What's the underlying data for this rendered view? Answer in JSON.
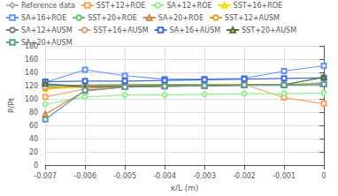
{
  "chart_data": {
    "type": "line",
    "xlabel": "x/L (m)",
    "ylabel": "P/Pt",
    "x": [
      -0.007,
      -0.006,
      -0.005,
      -0.004,
      -0.003,
      -0.002,
      -0.001,
      0.0
    ],
    "series": [
      {
        "name": "Reference data",
        "color": "#b0b0b0",
        "marker": "diamond",
        "values": [
          120,
          121,
          121,
          121,
          121,
          121,
          121,
          125
        ]
      },
      {
        "name": "SST+12+ROE",
        "color": "#f4a460",
        "marker": "square",
        "values": [
          103,
          115,
          120,
          120,
          121,
          122,
          102,
          93
        ]
      },
      {
        "name": "SA+12+ROE",
        "color": "#90ee90",
        "marker": "circle",
        "values": [
          92,
          103,
          106,
          106,
          107,
          108,
          108,
          109
        ]
      },
      {
        "name": "SST+16+ROE",
        "color": "#ffd700",
        "marker": "triangle",
        "values": [
          115,
          118,
          120,
          121,
          122,
          122,
          122,
          123
        ]
      },
      {
        "name": "SA+16+ROE",
        "color": "#6495ed",
        "marker": "square",
        "values": [
          125,
          144,
          135,
          130,
          130,
          131,
          142,
          150
        ]
      },
      {
        "name": "SST+20+ROE",
        "color": "#6abf6a",
        "marker": "circle",
        "values": [
          120,
          121,
          122,
          122,
          122,
          122,
          122,
          132
        ]
      },
      {
        "name": "SA+20+ROE",
        "color": "#cd853f",
        "marker": "triangle",
        "values": [
          77,
          112,
          118,
          119,
          120,
          121,
          121,
          122
        ]
      },
      {
        "name": "SST+12+AUSM",
        "color": "#daa520",
        "marker": "circle",
        "values": [
          116,
          120,
          121,
          121,
          121,
          122,
          122,
          122
        ]
      },
      {
        "name": "SA+12+AUSM",
        "color": "#808080",
        "marker": "circle",
        "values": [
          122,
          120,
          120,
          120,
          120,
          121,
          121,
          123
        ]
      },
      {
        "name": "SST+16+AUSM",
        "color": "#c8a882",
        "marker": "circle",
        "values": [
          118,
          119,
          120,
          120,
          120,
          121,
          121,
          122
        ]
      },
      {
        "name": "SA+16+AUSM",
        "color": "#4169e1",
        "marker": "square",
        "values": [
          126,
          127,
          127,
          128,
          129,
          130,
          131,
          132
        ]
      },
      {
        "name": "SST+20+AUSM",
        "color": "#556b2f",
        "marker": "triangle",
        "values": [
          123,
          118,
          119,
          120,
          120,
          121,
          121,
          133
        ]
      },
      {
        "name": "SA+20+AUSM",
        "color": "#5f9ea0",
        "marker": "square",
        "values": [
          69,
          113,
          118,
          119,
          120,
          121,
          121,
          122
        ]
      }
    ],
    "xlim": [
      -0.007,
      0.0
    ],
    "xticks": [
      -0.007,
      -0.006,
      -0.005,
      -0.004,
      -0.003,
      -0.002,
      -0.001,
      0
    ],
    "ylim": [
      0,
      180
    ],
    "yticks": [
      0,
      20,
      40,
      60,
      80,
      100,
      120,
      140,
      160,
      180
    ],
    "grid": true,
    "legend": "upper left"
  }
}
